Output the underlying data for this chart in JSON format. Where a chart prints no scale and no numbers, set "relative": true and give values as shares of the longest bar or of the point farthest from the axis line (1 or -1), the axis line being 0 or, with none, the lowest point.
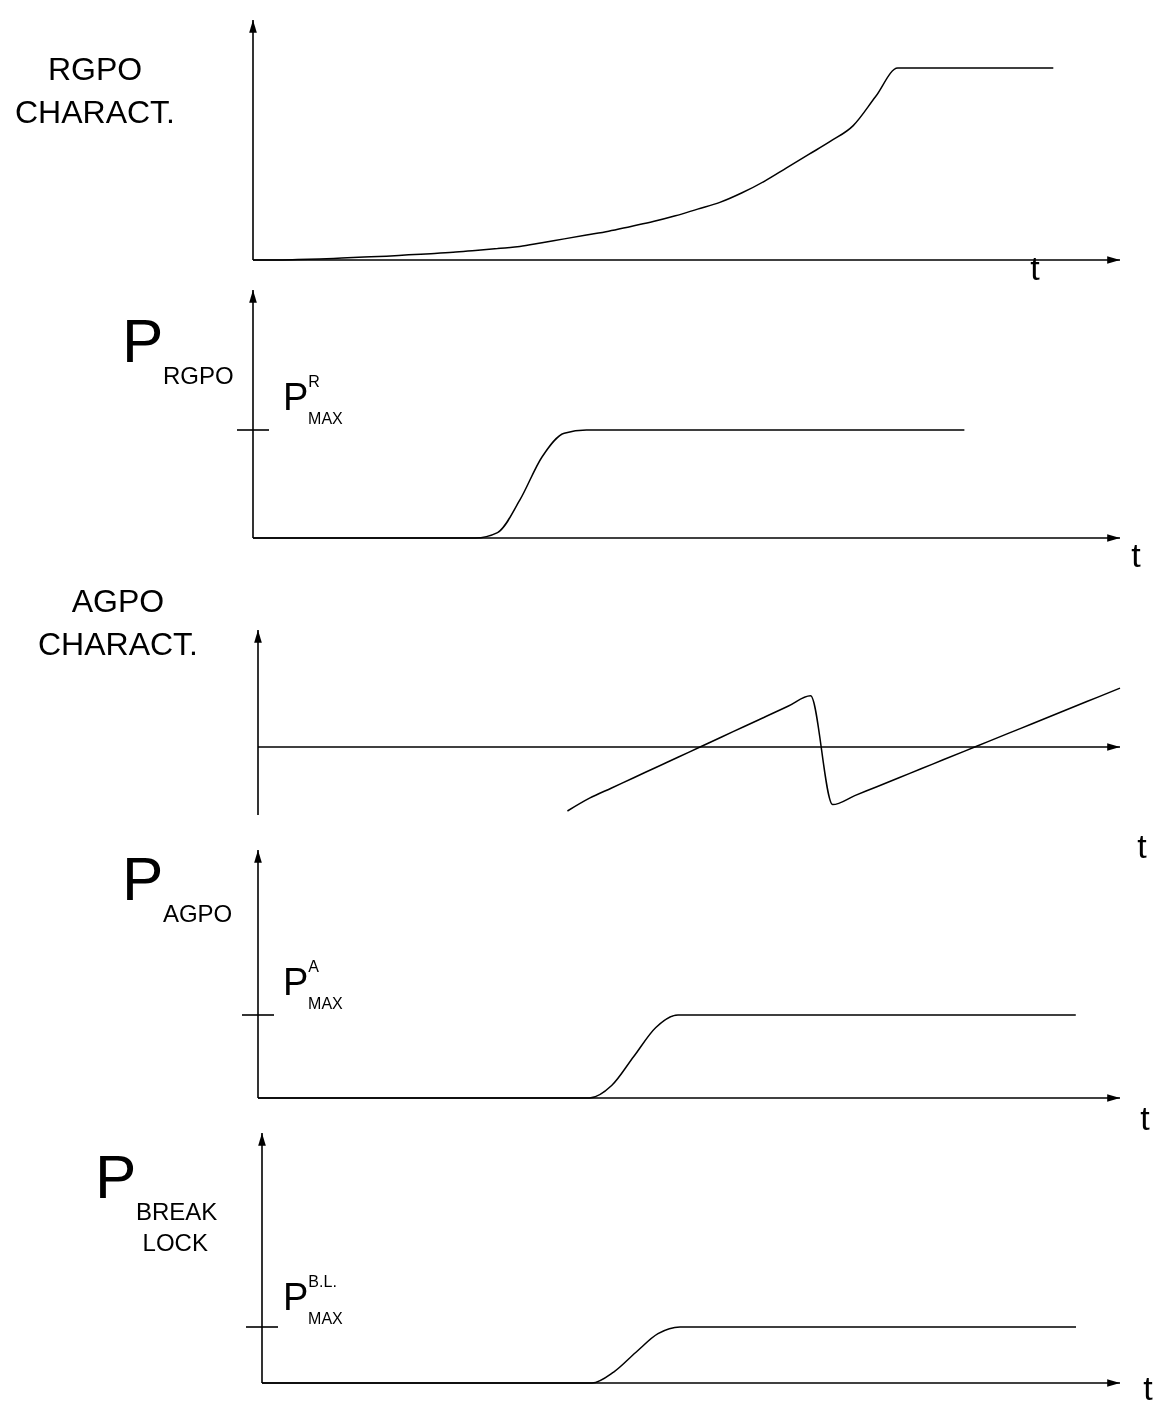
{
  "chart_data": [
    {
      "type": "line",
      "ylabel": "RGPO CHARACT.",
      "xlabel": "t",
      "relative": true,
      "categories": [
        null,
        null,
        null,
        null,
        null,
        null,
        null,
        null,
        null,
        null,
        null,
        null,
        null,
        null,
        null,
        null,
        null,
        null,
        null,
        null,
        null,
        null,
        null,
        null,
        null,
        null,
        null,
        null,
        null,
        null,
        null,
        null,
        null,
        null,
        null,
        null,
        null,
        null,
        null,
        null
      ],
      "series": [
        {
          "color": "#000000",
          "values": [
            0,
            0,
            0.002,
            0.005,
            0.01,
            0.015,
            0.02,
            0.027,
            0.033,
            0.04,
            0.05,
            0.06,
            0.07,
            0.09,
            0.11,
            0.13,
            0.15,
            0.175,
            0.2,
            0.23,
            0.265,
            0.3,
            0.35,
            0.41,
            0.48,
            0.55,
            0.62,
            0.7,
            0.85,
            1,
            1,
            1,
            1,
            1,
            1,
            1,
            1,
            null,
            null,
            null
          ]
        }
      ]
    },
    {
      "type": "line",
      "ylabel": "P$_{RGPO}$",
      "xlabel": "t",
      "relative": true,
      "annotations": [
        "P$^{R}$$_{MAX}$"
      ],
      "categories": [
        null,
        null,
        null,
        null,
        null,
        null,
        null,
        null,
        null,
        null,
        null,
        null,
        null,
        null,
        null,
        null,
        null,
        null,
        null,
        null,
        null,
        null,
        null,
        null,
        null,
        null,
        null,
        null,
        null,
        null,
        null,
        null,
        null,
        null,
        null,
        null,
        null,
        null,
        null,
        null
      ],
      "series": [
        {
          "color": "#000000",
          "values": [
            0,
            0,
            0,
            0,
            0,
            0,
            0,
            0,
            0,
            0,
            0,
            0.05,
            0.35,
            0.75,
            0.97,
            1,
            1,
            1,
            1,
            1,
            1,
            1,
            1,
            1,
            1,
            1,
            1,
            1,
            1,
            1,
            1,
            1,
            1,
            null,
            null,
            null,
            null,
            null,
            null,
            null
          ]
        }
      ]
    },
    {
      "type": "line",
      "ylabel": "AGPO CHARACT.",
      "xlabel": "t",
      "relative": true,
      "categories": [
        null,
        null,
        null,
        null,
        null,
        null,
        null,
        null,
        null,
        null,
        null,
        null,
        null,
        null,
        null,
        null,
        null,
        null,
        null,
        null,
        null,
        null,
        null,
        null,
        null,
        null,
        null,
        null,
        null,
        null,
        null,
        null,
        null,
        null,
        null,
        null,
        null,
        null,
        null,
        null
      ],
      "series": [
        {
          "color": "#000000",
          "values": [
            null,
            null,
            null,
            null,
            null,
            null,
            null,
            null,
            null,
            null,
            null,
            null,
            null,
            null,
            -1,
            -0.8,
            -0.64,
            -0.48,
            -0.32,
            -0.16,
            0,
            0.16,
            0.32,
            0.48,
            0.64,
            0.8,
            -0.9,
            -0.76,
            -0.62,
            -0.48,
            -0.34,
            -0.2,
            -0.06,
            0.08,
            0.22,
            0.36,
            0.5,
            0.64,
            0.78,
            0.92
          ]
        }
      ]
    },
    {
      "type": "line",
      "ylabel": "P$_{AGPO}$",
      "xlabel": "t",
      "relative": true,
      "annotations": [
        "P$^{A}$$_{MAX}$"
      ],
      "categories": [
        null,
        null,
        null,
        null,
        null,
        null,
        null,
        null,
        null,
        null,
        null,
        null,
        null,
        null,
        null,
        null,
        null,
        null,
        null,
        null,
        null,
        null,
        null,
        null,
        null,
        null,
        null,
        null,
        null,
        null,
        null,
        null,
        null,
        null,
        null,
        null,
        null,
        null,
        null,
        null
      ],
      "series": [
        {
          "color": "#000000",
          "values": [
            0,
            0,
            0,
            0,
            0,
            0,
            0,
            0,
            0,
            0,
            0,
            0,
            0,
            0,
            0,
            0,
            0.15,
            0.5,
            0.85,
            1,
            1,
            1,
            1,
            1,
            1,
            1,
            1,
            1,
            1,
            1,
            1,
            1,
            1,
            1,
            1,
            1,
            1,
            1,
            null,
            null
          ]
        }
      ]
    },
    {
      "type": "line",
      "ylabel": "P$_{BREAK LOCK}$",
      "xlabel": "t",
      "relative": true,
      "annotations": [
        "P$^{B.L.}$$_{MAX}$"
      ],
      "categories": [
        null,
        null,
        null,
        null,
        null,
        null,
        null,
        null,
        null,
        null,
        null,
        null,
        null,
        null,
        null,
        null,
        null,
        null,
        null,
        null,
        null,
        null,
        null,
        null,
        null,
        null,
        null,
        null,
        null,
        null,
        null,
        null,
        null,
        null,
        null,
        null,
        null,
        null,
        null,
        null
      ],
      "series": [
        {
          "color": "#000000",
          "values": [
            0,
            0,
            0,
            0,
            0,
            0,
            0,
            0,
            0,
            0,
            0,
            0,
            0,
            0,
            0,
            0,
            0.2,
            0.55,
            0.88,
            1,
            1,
            1,
            1,
            1,
            1,
            1,
            1,
            1,
            1,
            1,
            1,
            1,
            1,
            1,
            1,
            1,
            1,
            1,
            null,
            null
          ]
        }
      ]
    }
  ]
}
